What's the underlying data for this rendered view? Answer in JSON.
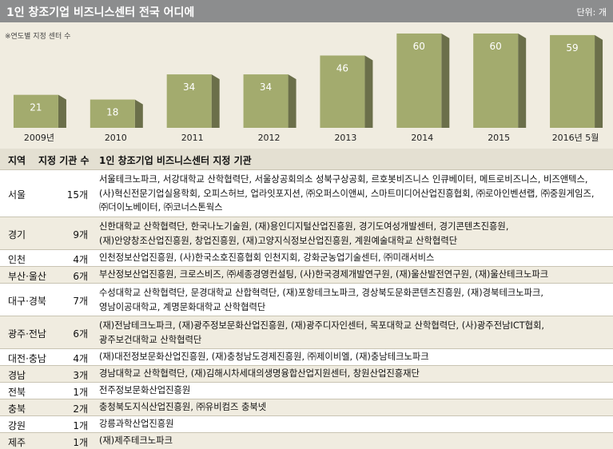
{
  "header": {
    "title": "1인 창조기업 비즈니스센터 전국 어디에",
    "unit": "단위: 개"
  },
  "chart_note": "※연도별 지정 센터 수",
  "chart_data": {
    "type": "bar",
    "categories": [
      "2009년",
      "2010",
      "2011",
      "2012",
      "2013",
      "2014",
      "2015",
      "2016년 5월"
    ],
    "values": [
      21,
      18,
      34,
      34,
      46,
      60,
      60,
      59
    ],
    "xlabel": "",
    "ylabel": "",
    "ylim": [
      0,
      62
    ],
    "grid": false,
    "bar_color": "#a3ab6e",
    "bar_side_color": "#6b6f4a",
    "label_color": "#ffffff"
  },
  "table": {
    "headers": {
      "region": "지역",
      "count": "지정 기관 수",
      "institutions": "1인 창조기업 비즈니스센터 지정 기관"
    },
    "rows": [
      {
        "region": "서울",
        "count": "15개",
        "lines": [
          "서울테크노파크, 서강대학교 산학협력단, 서울상공회의소 성북구상공회, 르호봇비즈니스 인큐베이터, 메트로비즈니스, 비즈앤텍스,",
          "(사)혁신전문기업실용학회, 오피스허브, 업라잇포지션, ㈜오퍼스이앤씨, 스마트미디어산업진흥협회, ㈜로아인벤션랩, ㈜중원게임즈,",
          "㈜더이노베이터, ㈜코너스톤웍스"
        ]
      },
      {
        "region": "경기",
        "count": "9개",
        "lines": [
          "신한대학교 산학협력단, 한국나노기술원, (재)용인디지털산업진흥원, 경기도여성개발센터, 경기콘텐츠진흥원,",
          "(재)안양창조산업진흥원, 창업진흥원, (재)고양지식정보산업진흥원, 계원예술대학교 산학협력단"
        ]
      },
      {
        "region": "인천",
        "count": "4개",
        "lines": [
          "인천정보산업진흥원, (사)한국소호진흥협회 인천지회, 강화군농업기술센터, ㈜미래서비스"
        ]
      },
      {
        "region": "부산·울산",
        "count": "6개",
        "lines": [
          "부산정보산업진흥원, 크로스비즈, ㈜세종경영컨설팅, (사)한국경제개발연구원, (재)울산발전연구원, (재)울산테크노파크"
        ]
      },
      {
        "region": "대구·경북",
        "count": "7개",
        "lines": [
          "수성대학교 산학협력단, 문경대학교 산합혁력단, (재)포항테크노파크, 경상북도문화콘텐츠진흥원, (재)경북테크노파크,",
          "영남이공대학교, 계명문화대학교 산학협력단"
        ]
      },
      {
        "region": "광주·전남",
        "count": "6개",
        "lines": [
          "(재)전남테크노파크, (재)광주정보문화산업진흥원, (재)광주디자인센터, 목포대학교 산학협력단, (사)광주전남ICT협회,",
          "광주보건대학교 산학협력단"
        ]
      },
      {
        "region": "대전·충남",
        "count": "4개",
        "lines": [
          "(재)대전정보문화산업진흥원, (재)충청남도경제진흥원, ㈜제이비엘, (재)충남테크노파크"
        ]
      },
      {
        "region": "경남",
        "count": "3개",
        "lines": [
          "경남대학교 산학협력단, (재)김해시차세대의생명융합산업지원센터, 창원산업진흥재단"
        ]
      },
      {
        "region": "전북",
        "count": "1개",
        "lines": [
          "전주정보문화산업진흥원"
        ]
      },
      {
        "region": "충북",
        "count": "2개",
        "lines": [
          "충청북도지식산업진흥원, ㈜유비컴즈 충북넷"
        ]
      },
      {
        "region": "강원",
        "count": "1개",
        "lines": [
          "강릉과학산업진흥원"
        ]
      },
      {
        "region": "제주",
        "count": "1개",
        "lines": [
          "(재)제주테크노파크"
        ]
      }
    ]
  }
}
